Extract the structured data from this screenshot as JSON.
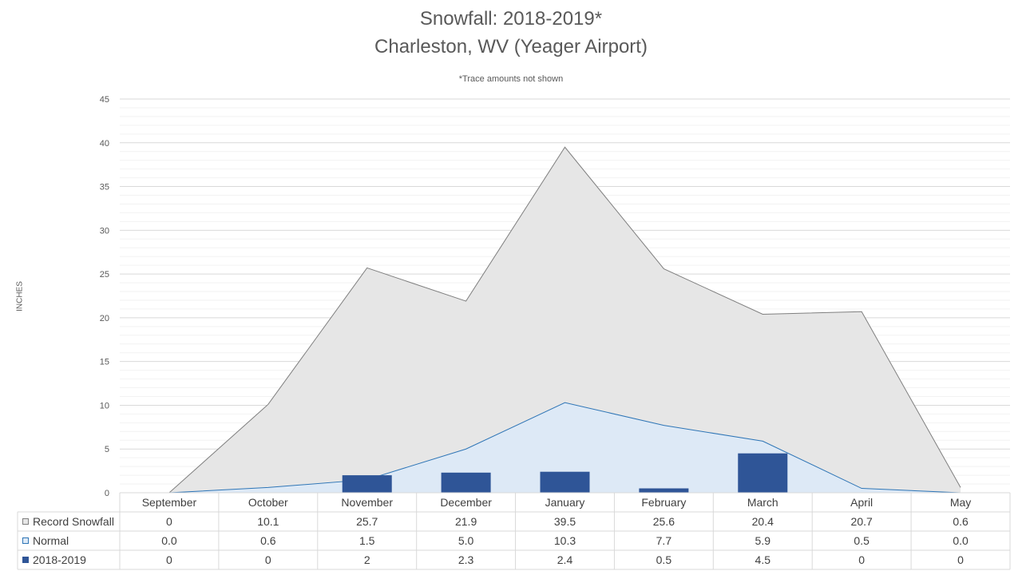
{
  "chart_data": {
    "type": "area",
    "title": "Snowfall: 2018-2019*",
    "subtitle": "Charleston, WV (Yeager Airport)",
    "note": "*Trace amounts not shown",
    "ylabel": "INCHES",
    "xlabel": "",
    "ylim": [
      0,
      45
    ],
    "yticks": [
      0,
      5,
      10,
      15,
      20,
      25,
      30,
      35,
      40,
      45
    ],
    "grid": true,
    "legend": "data-table",
    "categories": [
      "September",
      "October",
      "November",
      "December",
      "January",
      "February",
      "March",
      "April",
      "May"
    ],
    "series": [
      {
        "name": "Record Snowfall",
        "type": "area",
        "color": "#e6e6e6",
        "stroke": "#7f7f7f",
        "values": [
          0,
          10.1,
          25.7,
          21.9,
          39.5,
          25.6,
          20.4,
          20.7,
          0.6
        ],
        "labels": [
          "0",
          "10.1",
          "25.7",
          "21.9",
          "39.5",
          "25.6",
          "20.4",
          "20.7",
          "0.6"
        ]
      },
      {
        "name": "Normal",
        "type": "area",
        "color": "#dde9f6",
        "stroke": "#2e75b6",
        "values": [
          0.0,
          0.6,
          1.5,
          5.0,
          10.3,
          7.7,
          5.9,
          0.5,
          0.0
        ],
        "labels": [
          "0.0",
          "0.6",
          "1.5",
          "5.0",
          "10.3",
          "7.7",
          "5.9",
          "0.5",
          "0.0"
        ]
      },
      {
        "name": "2018-2019",
        "type": "bar",
        "color": "#2f5597",
        "values": [
          0,
          0,
          2,
          2.3,
          2.4,
          0.5,
          4.5,
          0,
          0
        ],
        "labels": [
          "0",
          "0",
          "2",
          "2.3",
          "2.4",
          "0.5",
          "4.5",
          "0",
          "0"
        ]
      }
    ]
  }
}
